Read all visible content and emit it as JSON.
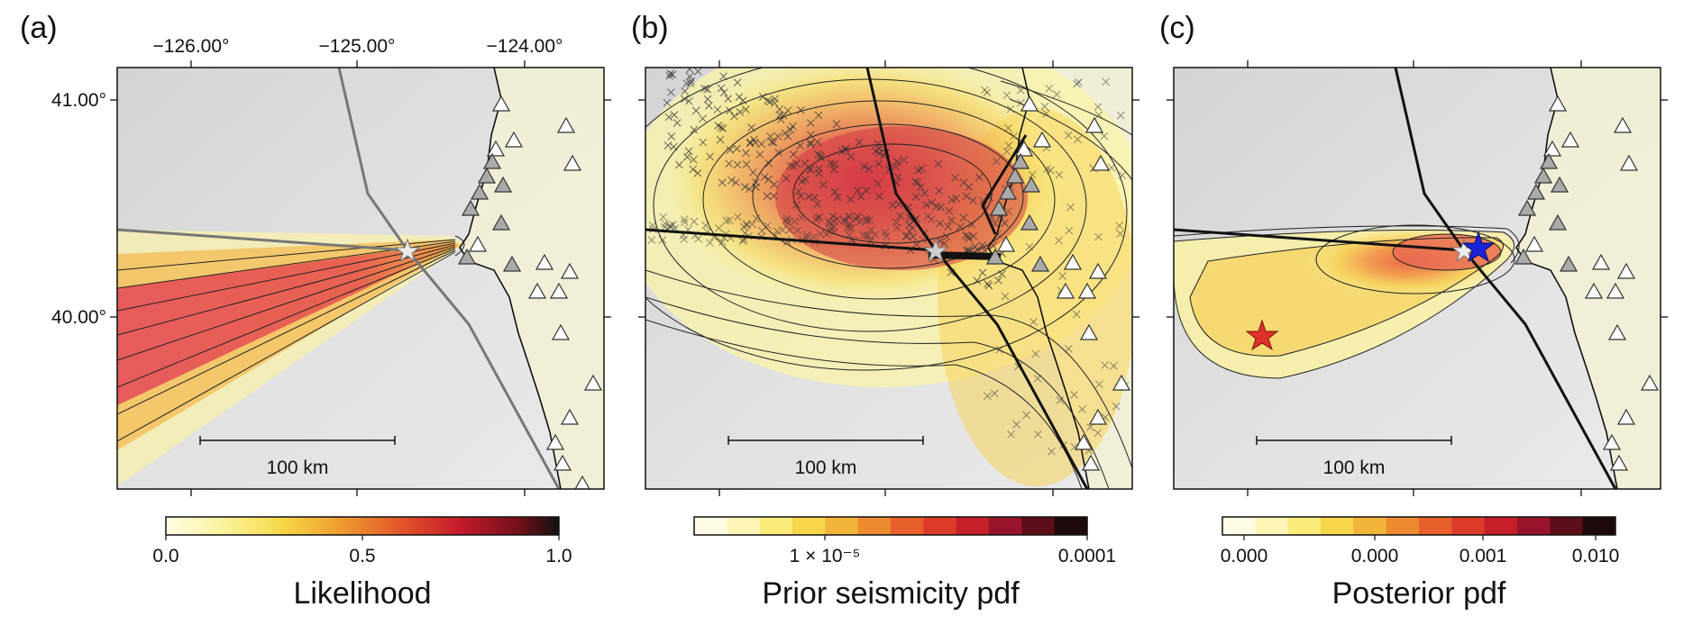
{
  "panels": [
    {
      "id": "a",
      "label": "(a)",
      "top_ticks": [
        "−126.00°",
        "−125.00°",
        "−124.00°"
      ],
      "left_ticks": [
        "41.00°",
        "40.00°"
      ],
      "scalebar_label": "100 km",
      "colorbar": {
        "title": "Likelihood",
        "ticks": [
          "0.0",
          "0.5",
          "1.0"
        ],
        "type": "continuous"
      }
    },
    {
      "id": "b",
      "label": "(b)",
      "scalebar_label": "100 km",
      "colorbar": {
        "title": "Prior seismicity pdf",
        "ticks": [
          "1 × 10⁻⁵",
          "0.0001"
        ],
        "type": "discrete"
      }
    },
    {
      "id": "c",
      "label": "(c)",
      "scalebar_label": "100 km",
      "colorbar": {
        "title": "Posterior pdf",
        "ticks": [
          "0.000",
          "0.000",
          "0.001",
          "0.010"
        ],
        "type": "discrete"
      }
    }
  ],
  "colors": {
    "ocean_gray": "#dcdcdc",
    "land_cream": "#f3f0d6",
    "station_triangle": "#ffffff",
    "station_triangle_dim": "#a8a8a8",
    "epicenter_star": "#e8e8e8",
    "red_star": "#e0302a",
    "blue_star": "#1a24d8",
    "fault_line": "#111111"
  },
  "map_symbols": {
    "stations": "triangle-icon",
    "epicenter": "star-icon",
    "seismicity": "cross-icon"
  }
}
